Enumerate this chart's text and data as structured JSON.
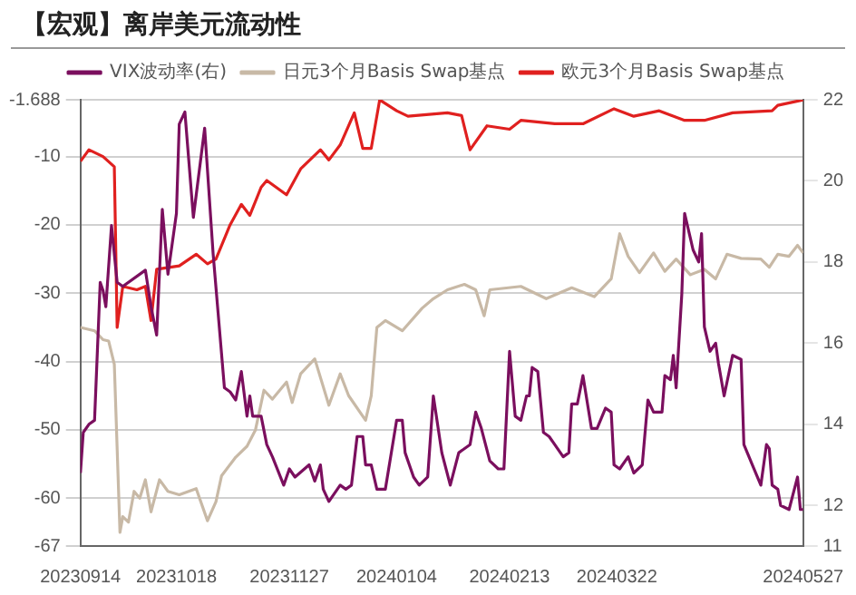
{
  "chart_data": {
    "type": "line",
    "title": "【宏观】离岸美元流动性",
    "legend": "top",
    "grid": "y",
    "marker": "none",
    "line_style": "solid",
    "xlim": [
      "2023-09-14",
      "2024-05-27"
    ],
    "xticks": [
      {
        "value": "2023-09-14",
        "label": "20230914"
      },
      {
        "value": "2023-10-18",
        "label": "20231018"
      },
      {
        "value": "2023-11-27",
        "label": "20231127"
      },
      {
        "value": "2024-01-04",
        "label": "20240104"
      },
      {
        "value": "2024-02-13",
        "label": "20240213"
      },
      {
        "value": "2024-03-22",
        "label": "20240322"
      },
      {
        "value": "2024-05-27",
        "label": "20240527"
      }
    ],
    "ylim": [
      -67,
      -1.688
    ],
    "yticks": [
      -67,
      -60,
      -50,
      -40,
      -30,
      -20,
      -10,
      -1.688
    ],
    "y2lim": [
      11,
      22
    ],
    "y2ticks": [
      11,
      12,
      14,
      16,
      18,
      20,
      22
    ],
    "series": [
      {
        "name": "VIX波动率(右)",
        "color": "#7b0f5e",
        "axis": "y2",
        "x": [
          "2023-09-14",
          "2023-09-15",
          "2023-09-17",
          "2023-09-19",
          "2023-09-21",
          "2023-09-22",
          "2023-09-23",
          "2023-09-25",
          "2023-09-27",
          "2023-09-29",
          "2023-10-07",
          "2023-10-09",
          "2023-10-11",
          "2023-10-13",
          "2023-10-15",
          "2023-10-18",
          "2023-10-19",
          "2023-10-21",
          "2023-10-24",
          "2023-10-28",
          "2023-10-31",
          "2023-11-04",
          "2023-11-06",
          "2023-11-08",
          "2023-11-10",
          "2023-11-12",
          "2023-11-13",
          "2023-11-14",
          "2023-11-17",
          "2023-11-19",
          "2023-11-21",
          "2023-11-25",
          "2023-11-27",
          "2023-11-29",
          "2023-12-04",
          "2023-12-06",
          "2023-12-08",
          "2023-12-09",
          "2023-12-11",
          "2023-12-15",
          "2023-12-17",
          "2023-12-19",
          "2023-12-21",
          "2023-12-23",
          "2023-12-24",
          "2023-12-26",
          "2023-12-28",
          "2023-12-31",
          "2024-01-04",
          "2024-01-06",
          "2024-01-07",
          "2024-01-10",
          "2024-01-12",
          "2024-01-15",
          "2024-01-17",
          "2024-01-20",
          "2024-01-23",
          "2024-01-26",
          "2024-01-30",
          "2024-02-01",
          "2024-02-03",
          "2024-02-06",
          "2024-02-09",
          "2024-02-11",
          "2024-02-13",
          "2024-02-15",
          "2024-02-17",
          "2024-02-19",
          "2024-02-20",
          "2024-02-21",
          "2024-02-23",
          "2024-02-25",
          "2024-02-27",
          "2024-02-29",
          "2024-03-03",
          "2024-03-05",
          "2024-03-06",
          "2024-03-08",
          "2024-03-10",
          "2024-03-13",
          "2024-03-15",
          "2024-03-18",
          "2024-03-20",
          "2024-03-21",
          "2024-03-23",
          "2024-03-26",
          "2024-03-28",
          "2024-03-31",
          "2024-04-02",
          "2024-04-04",
          "2024-04-07",
          "2024-04-08",
          "2024-04-10",
          "2024-04-11",
          "2024-04-12",
          "2024-04-14",
          "2024-04-15",
          "2024-04-18",
          "2024-04-20",
          "2024-04-21",
          "2024-04-22",
          "2024-04-24",
          "2024-04-26",
          "2024-04-27",
          "2024-04-29",
          "2024-05-02",
          "2024-05-05",
          "2024-05-06",
          "2024-05-09",
          "2024-05-12",
          "2024-05-14",
          "2024-05-15",
          "2024-05-16",
          "2024-05-18",
          "2024-05-19",
          "2024-05-22",
          "2024-05-25",
          "2024-05-26",
          "2024-05-27"
        ],
        "values": [
          12.8,
          13.8,
          14.0,
          14.1,
          17.5,
          17.3,
          16.9,
          18.9,
          17.5,
          17.4,
          17.8,
          16.9,
          16.2,
          19.3,
          17.7,
          19.2,
          21.4,
          21.7,
          19.1,
          21.3,
          18.2,
          14.9,
          14.8,
          14.6,
          15.3,
          14.2,
          14.7,
          14.2,
          14.2,
          13.5,
          13.2,
          12.5,
          12.9,
          12.7,
          13.0,
          12.6,
          13.0,
          12.4,
          12.1,
          12.5,
          12.4,
          12.5,
          13.7,
          13.7,
          13.0,
          13.0,
          12.4,
          12.4,
          14.1,
          14.1,
          13.3,
          12.7,
          12.5,
          12.7,
          14.7,
          13.3,
          12.5,
          13.3,
          13.5,
          14.3,
          13.9,
          13.1,
          12.9,
          12.9,
          15.8,
          14.2,
          14.1,
          14.7,
          14.7,
          15.4,
          15.3,
          13.8,
          13.7,
          13.5,
          13.2,
          13.3,
          14.5,
          14.5,
          15.2,
          13.9,
          13.9,
          14.4,
          14.3,
          13.0,
          12.9,
          13.2,
          12.8,
          13.0,
          14.6,
          14.3,
          14.3,
          15.2,
          15.1,
          15.7,
          14.9,
          17.2,
          19.2,
          18.3,
          18.0,
          18.7,
          16.4,
          15.8,
          16.0,
          15.5,
          14.7,
          15.7,
          15.6,
          13.5,
          13.0,
          12.5,
          13.5,
          13.4,
          12.5,
          12.4,
          12.0,
          11.9,
          12.7,
          11.9,
          11.9
        ]
      },
      {
        "name": "日元3个月Basis Swap基点",
        "color": "#c8b9a6",
        "x": [
          "2023-09-14",
          "2023-09-19",
          "2023-09-22",
          "2023-09-24",
          "2023-09-26",
          "2023-09-28",
          "2023-09-29",
          "2023-10-01",
          "2023-10-03",
          "2023-10-05",
          "2023-10-07",
          "2023-10-09",
          "2023-10-12",
          "2023-10-15",
          "2023-10-19",
          "2023-10-25",
          "2023-10-29",
          "2023-11-01",
          "2023-11-03",
          "2023-11-08",
          "2023-11-12",
          "2023-11-15",
          "2023-11-18",
          "2023-11-21",
          "2023-11-26",
          "2023-11-28",
          "2023-12-01",
          "2023-12-06",
          "2023-12-11",
          "2023-12-15",
          "2023-12-18",
          "2023-12-24",
          "2023-12-26",
          "2023-12-28",
          "2023-12-31",
          "2024-01-06",
          "2024-01-13",
          "2024-01-17",
          "2024-01-22",
          "2024-01-28",
          "2024-02-01",
          "2024-02-04",
          "2024-02-06",
          "2024-02-17",
          "2024-02-26",
          "2024-03-06",
          "2024-03-14",
          "2024-03-20",
          "2024-03-23",
          "2024-03-26",
          "2024-03-30",
          "2024-04-04",
          "2024-04-08",
          "2024-04-12",
          "2024-04-17",
          "2024-04-22",
          "2024-04-26",
          "2024-04-30",
          "2024-05-05",
          "2024-05-12",
          "2024-05-15",
          "2024-05-18",
          "2024-05-22",
          "2024-05-25",
          "2024-05-27"
        ],
        "values": [
          -35,
          -35.5,
          -36.8,
          -37,
          -40.4,
          -65,
          -62.7,
          -63.5,
          -59,
          -60,
          -57.3,
          -62,
          -57.3,
          -59,
          -59.5,
          -58.6,
          -63.3,
          -60.5,
          -56.7,
          -54,
          -52.4,
          -50,
          -44.2,
          -45.5,
          -43,
          -46,
          -41.8,
          -39.6,
          -46.4,
          -41.8,
          -45,
          -48.6,
          -45,
          -35,
          -34,
          -35.5,
          -32.2,
          -30.8,
          -29.5,
          -28.7,
          -29.5,
          -33.3,
          -29.5,
          -29,
          -30.8,
          -29.2,
          -30.5,
          -27.9,
          -21.3,
          -24.6,
          -27,
          -24.1,
          -26.8,
          -25,
          -27.3,
          -26.5,
          -27.9,
          -24.3,
          -24.9,
          -25,
          -26.2,
          -24.3,
          -24.6,
          -23,
          -24.1
        ]
      },
      {
        "name": "欧元3个月Basis Swap基点",
        "color": "#e0201f",
        "x": [
          "2023-09-14",
          "2023-09-17",
          "2023-09-22",
          "2023-09-26",
          "2023-09-27",
          "2023-09-29",
          "2023-10-04",
          "2023-10-07",
          "2023-10-09",
          "2023-10-11",
          "2023-10-19",
          "2023-10-25",
          "2023-10-29",
          "2023-11-01",
          "2023-11-06",
          "2023-11-10",
          "2023-11-13",
          "2023-11-17",
          "2023-11-19",
          "2023-11-26",
          "2023-12-01",
          "2023-12-08",
          "2023-12-11",
          "2023-12-15",
          "2023-12-20",
          "2023-12-23",
          "2023-12-26",
          "2023-12-29",
          "2024-01-04",
          "2024-01-08",
          "2024-01-22",
          "2024-01-27",
          "2024-01-30",
          "2024-02-05",
          "2024-02-13",
          "2024-02-17",
          "2024-02-29",
          "2024-03-10",
          "2024-03-21",
          "2024-03-28",
          "2024-04-06",
          "2024-04-15",
          "2024-04-22",
          "2024-05-02",
          "2024-05-16",
          "2024-05-18",
          "2024-05-27"
        ],
        "values": [
          -10.7,
          -9,
          -10,
          -11.5,
          -35,
          -29,
          -29.5,
          -29,
          -34,
          -26.5,
          -26,
          -24.3,
          -25.7,
          -25,
          -20,
          -17,
          -18.6,
          -14.5,
          -13.5,
          -15.6,
          -11.8,
          -9,
          -10.5,
          -8.3,
          -3.6,
          -8.8,
          -8.8,
          -1.7,
          -3.3,
          -4.1,
          -3.6,
          -4,
          -9,
          -5.5,
          -6,
          -4.7,
          -5.2,
          -5.2,
          -3,
          -4.1,
          -3.3,
          -4.7,
          -4.7,
          -3.6,
          -3.3,
          -2.5,
          -1.7
        ]
      }
    ]
  }
}
